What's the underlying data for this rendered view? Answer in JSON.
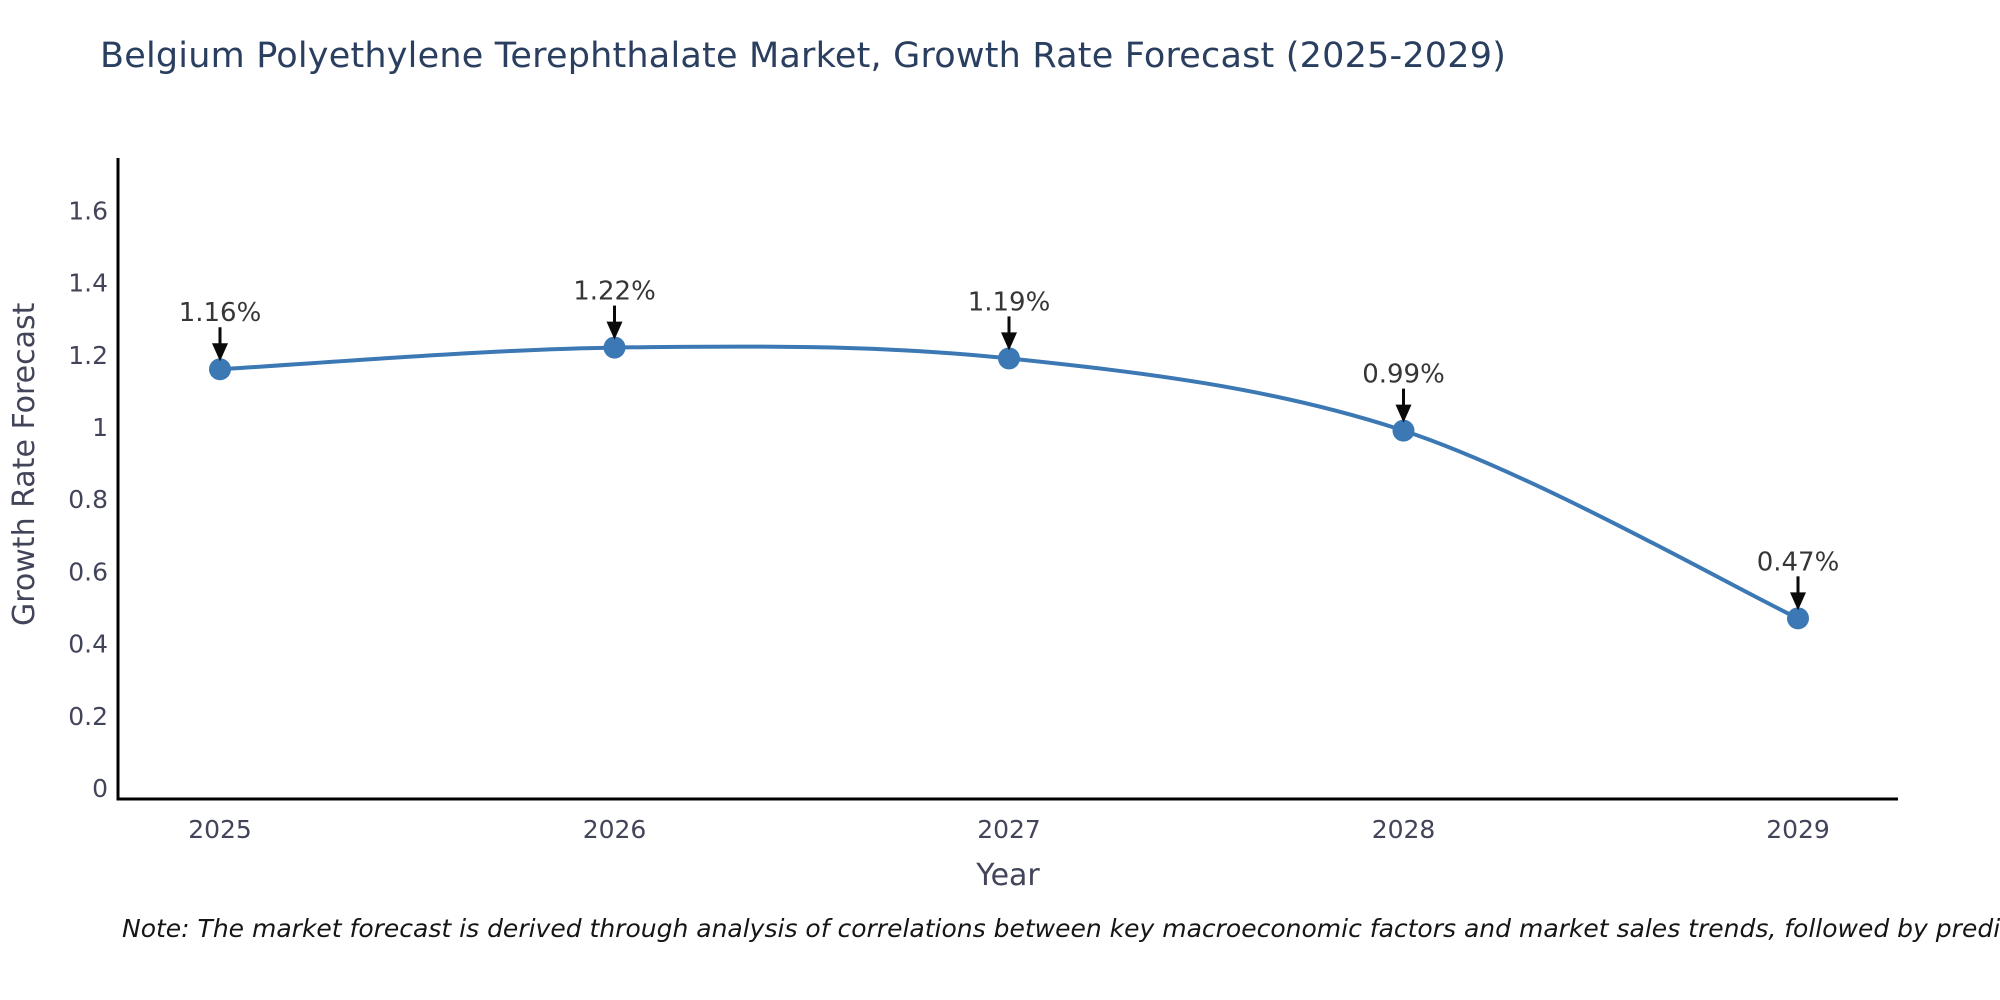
{
  "title": "Belgium Polyethylene Terephthalate Market, Growth Rate Forecast (2025-2029)",
  "note": "Note: The market forecast is derived through analysis of correlations between key macroeconomic factors and market sales trends, followed by predictive modeling to project future sales",
  "chart_data": {
    "type": "line",
    "title": "Belgium Polyethylene Terephthalate Market, Growth Rate Forecast (2025-2029)",
    "xlabel": "Year",
    "ylabel": "Growth Rate Forecast",
    "categories": [
      "2025",
      "2026",
      "2027",
      "2028",
      "2029"
    ],
    "series": [
      {
        "name": "Growth Rate Forecast",
        "values": [
          1.16,
          1.22,
          1.19,
          0.99,
          0.47
        ],
        "point_labels": [
          "1.16%",
          "1.22%",
          "1.19%",
          "0.99%",
          "0.47%"
        ]
      }
    ],
    "ytick_labels": [
      "0",
      "0.2",
      "0.4",
      "0.6",
      "0.8",
      "1",
      "1.2",
      "1.4",
      "1.6"
    ],
    "ylim": [
      0,
      1.75
    ],
    "grid": false,
    "line_style": "spline",
    "annotation_arrows": true,
    "legend": "none",
    "colors": {
      "line": "#3c78b4",
      "marker": "#3c78b4",
      "axis_line": "#000000",
      "tick_text": "#42445a",
      "title_text": "#2a3f5f",
      "annotation_text": "#363636",
      "arrow": "#0a0a0a"
    }
  }
}
